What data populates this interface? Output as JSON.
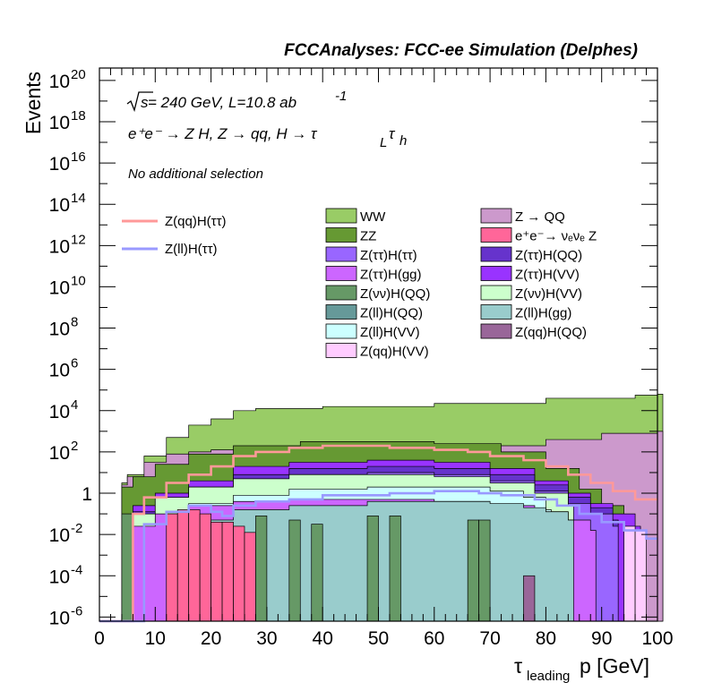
{
  "banner": "FCCAnalyses: FCC-ee Simulation (Delphes)",
  "annotations": {
    "energy_prefix": "s",
    "energy_text": " = 240 GeV, L=10.8 ab",
    "lumi_sup": "-1",
    "process_text": "e⁺e⁻ → Z H, Z → qq, H → τ",
    "tau1_sub": "L",
    "tau2": "τ",
    "tau2_sub": "h",
    "selection": "No additional selection"
  },
  "colors": {
    "WW": "#99cc66",
    "ZZ": "#669933",
    "ZQQ": "#cc99cc",
    "nunuZ": "#ff6699",
    "ZtautauHtautau": "#9966ff",
    "ZtautauHQQ": "#6633cc",
    "ZtautauHgg": "#cc66ff",
    "ZtautauHVV": "#9933ff",
    "ZnunuHQQ": "#669966",
    "ZnunuHVV": "#ccffcc",
    "ZllHQQ": "#669999",
    "ZllHgg": "#99cccc",
    "ZllHVV": "#ccffff",
    "ZqqHQQ": "#996699",
    "ZqqHVV": "#ffccff",
    "sig_qq": "#ff9999",
    "sig_ll": "#9999ff"
  },
  "chart_data": {
    "type": "histogram-stacked-log",
    "title": "FCCAnalyses: FCC-ee Simulation (Delphes)",
    "xlabel": "τ_leading p [GeV]",
    "ylabel": "Events",
    "xlim": [
      0,
      100
    ],
    "ylim_log10": [
      -6.2,
      20.6
    ],
    "y_ticks": [
      {
        "base": "10",
        "exp": "20"
      },
      {
        "base": "10",
        "exp": "18"
      },
      {
        "base": "10",
        "exp": "16"
      },
      {
        "base": "10",
        "exp": "14"
      },
      {
        "base": "10",
        "exp": "12"
      },
      {
        "base": "10",
        "exp": "10"
      },
      {
        "base": "10",
        "exp": "8"
      },
      {
        "base": "10",
        "exp": "6"
      },
      {
        "base": "10",
        "exp": "4"
      },
      {
        "base": "10",
        "exp": "2"
      },
      {
        "base": "1",
        "exp": ""
      },
      {
        "base": "10",
        "exp": "-2"
      },
      {
        "base": "10",
        "exp": "-4"
      },
      {
        "base": "10",
        "exp": "-6"
      }
    ],
    "x_ticks": [
      "0",
      "10",
      "20",
      "30",
      "40",
      "50",
      "60",
      "70",
      "80",
      "90",
      "100"
    ],
    "envelopes_log10": [
      {
        "name": "WW",
        "color_key": "WW",
        "points": [
          [
            4,
            0.5
          ],
          [
            5,
            0.9
          ],
          [
            8,
            1.8
          ],
          [
            12,
            2.7
          ],
          [
            16,
            3.3
          ],
          [
            20,
            3.6
          ],
          [
            24,
            4.0
          ],
          [
            28,
            4.1
          ],
          [
            40,
            4.2
          ],
          [
            60,
            4.35
          ],
          [
            80,
            4.6
          ],
          [
            96,
            4.75
          ],
          [
            100,
            4.8
          ]
        ]
      },
      {
        "name": "Z → QQ",
        "color_key": "ZQQ",
        "points": [
          [
            4,
            0.4
          ],
          [
            5,
            0.8
          ],
          [
            8,
            1.5
          ],
          [
            12,
            1.9
          ],
          [
            16,
            2.0
          ],
          [
            20,
            2.1
          ],
          [
            28,
            2.2
          ],
          [
            40,
            2.2
          ],
          [
            60,
            2.2
          ],
          [
            70,
            2.3
          ],
          [
            80,
            2.6
          ],
          [
            90,
            2.9
          ],
          [
            100,
            3.0
          ]
        ]
      },
      {
        "name": "ZZ",
        "color_key": "ZZ",
        "points": [
          [
            4,
            0.3
          ],
          [
            6,
            0.8
          ],
          [
            10,
            1.4
          ],
          [
            16,
            1.9
          ],
          [
            24,
            2.3
          ],
          [
            36,
            2.5
          ],
          [
            48,
            2.5
          ],
          [
            60,
            2.4
          ],
          [
            72,
            2.0
          ],
          [
            80,
            1.2
          ],
          [
            86,
            0.2
          ],
          [
            90,
            -0.6
          ],
          [
            94,
            -1.6
          ],
          [
            96,
            -2.6
          ]
        ]
      },
      {
        "name": "Z(ττ)H(VV)",
        "color_key": "ZtautauHVV",
        "points": [
          [
            6,
            -0.6
          ],
          [
            10,
            0.0
          ],
          [
            16,
            0.6
          ],
          [
            24,
            1.3
          ],
          [
            34,
            1.5
          ],
          [
            48,
            1.6
          ],
          [
            60,
            1.5
          ],
          [
            70,
            1.2
          ],
          [
            78,
            0.6
          ],
          [
            84,
            0.0
          ],
          [
            88,
            -0.5
          ],
          [
            92,
            -1.0
          ],
          [
            96,
            -1.6
          ]
        ]
      },
      {
        "name": "Z(ττ)H(QQ)",
        "color_key": "ZtautauHQQ",
        "points": [
          [
            6,
            -0.9
          ],
          [
            10,
            -0.3
          ],
          [
            16,
            0.3
          ],
          [
            24,
            0.9
          ],
          [
            34,
            1.2
          ],
          [
            48,
            1.3
          ],
          [
            60,
            1.2
          ],
          [
            70,
            0.9
          ],
          [
            78,
            0.4
          ],
          [
            84,
            -0.2
          ],
          [
            88,
            -0.7
          ],
          [
            92,
            -1.3
          ]
        ]
      },
      {
        "name": "Z(ττ)H(ττ)",
        "color_key": "ZtautauHtautau",
        "points": [
          [
            6,
            -1.2
          ],
          [
            10,
            -0.6
          ],
          [
            16,
            0.0
          ],
          [
            24,
            0.6
          ],
          [
            34,
            0.9
          ],
          [
            48,
            1.0
          ],
          [
            60,
            0.9
          ],
          [
            70,
            0.6
          ],
          [
            78,
            0.1
          ],
          [
            84,
            -0.5
          ],
          [
            88,
            -1.0
          ],
          [
            92,
            -1.6
          ]
        ]
      },
      {
        "name": "Z(νν)H(VV)",
        "color_key": "ZnunuHVV",
        "points": [
          [
            6,
            -1.0
          ],
          [
            10,
            -0.2
          ],
          [
            16,
            0.3
          ],
          [
            24,
            0.7
          ],
          [
            34,
            0.9
          ],
          [
            48,
            0.9
          ],
          [
            60,
            0.8
          ],
          [
            70,
            0.5
          ],
          [
            78,
            0.0
          ],
          [
            84,
            -0.6
          ]
        ]
      },
      {
        "name": "Z(ll)H(VV)",
        "color_key": "ZllHVV",
        "points": [
          [
            10,
            -1.2
          ],
          [
            16,
            -0.5
          ],
          [
            24,
            -0.1
          ],
          [
            34,
            0.2
          ],
          [
            48,
            0.3
          ],
          [
            60,
            0.3
          ],
          [
            70,
            0.1
          ],
          [
            76,
            -0.2
          ],
          [
            80,
            -0.8
          ]
        ]
      },
      {
        "name": "Z(ττ)H(gg)",
        "color_key": "ZtautauHgg",
        "points": [
          [
            6,
            -1.6
          ],
          [
            10,
            -1.0
          ],
          [
            16,
            -0.6
          ],
          [
            24,
            -0.4
          ],
          [
            34,
            -0.3
          ],
          [
            48,
            -0.3
          ],
          [
            60,
            -0.4
          ],
          [
            70,
            -0.6
          ],
          [
            78,
            -0.9
          ],
          [
            84,
            -1.3
          ],
          [
            88,
            -1.8
          ]
        ]
      },
      {
        "name": "Z(ll)H(gg)",
        "color_key": "ZllHgg",
        "points": [
          [
            14,
            -2.0
          ],
          [
            20,
            -1.3
          ],
          [
            24,
            -0.8
          ],
          [
            34,
            -0.6
          ],
          [
            48,
            -0.4
          ],
          [
            60,
            -0.4
          ],
          [
            70,
            -0.5
          ],
          [
            76,
            -0.7
          ],
          [
            80,
            -0.9
          ],
          [
            84,
            -1.3
          ]
        ]
      }
    ],
    "spikes_log10": [
      {
        "name": "e⁺e⁻→ νₑνₑ Z",
        "color_key": "nunuZ",
        "bins": [
          [
            12,
            14,
            -1.0
          ],
          [
            14,
            16,
            -0.8
          ],
          [
            16,
            18,
            -0.8
          ],
          [
            18,
            20,
            -1.0
          ],
          [
            20,
            22,
            -1.4
          ],
          [
            22,
            24,
            -1.4
          ],
          [
            24,
            26,
            -1.6
          ],
          [
            26,
            28,
            -1.9
          ]
        ]
      },
      {
        "name": "Z(νν)H(QQ)",
        "color_key": "ZnunuHQQ",
        "bins": [
          [
            4,
            6,
            -1.0
          ],
          [
            28,
            30,
            -1.1
          ],
          [
            34,
            36,
            -1.3
          ],
          [
            38,
            40,
            -1.5
          ],
          [
            48,
            50,
            -1.1
          ],
          [
            52,
            54,
            -1.1
          ],
          [
            66,
            68,
            -1.3
          ],
          [
            68,
            70,
            -1.3
          ]
        ]
      },
      {
        "name": "Z(qq)H(QQ)",
        "color_key": "ZqqHQQ",
        "bins": [
          [
            76,
            78,
            -4.0
          ]
        ]
      },
      {
        "name": "Z(qq)H(VV)",
        "color_key": "ZqqHVV",
        "bins": [
          [
            94,
            96,
            -1.6
          ],
          [
            96,
            98,
            -1.8
          ]
        ]
      }
    ],
    "signal_lines_log10": [
      {
        "name": "Z(qq)H(ττ)",
        "color_key": "sig_qq",
        "points": [
          [
            0,
            -6.2
          ],
          [
            6,
            -6.2
          ],
          [
            6,
            -1.0
          ],
          [
            8,
            -1.0
          ],
          [
            8,
            -0.2
          ],
          [
            12,
            -0.2
          ],
          [
            12,
            0.5
          ],
          [
            16,
            0.5
          ],
          [
            16,
            0.9
          ],
          [
            20,
            0.9
          ],
          [
            20,
            1.3
          ],
          [
            24,
            1.3
          ],
          [
            24,
            1.8
          ],
          [
            28,
            1.8
          ],
          [
            28,
            2.0
          ],
          [
            34,
            2.0
          ],
          [
            34,
            2.2
          ],
          [
            40,
            2.2
          ],
          [
            40,
            2.3
          ],
          [
            52,
            2.3
          ],
          [
            52,
            2.2
          ],
          [
            60,
            2.2
          ],
          [
            60,
            2.1
          ],
          [
            66,
            2.1
          ],
          [
            66,
            2.0
          ],
          [
            70,
            2.0
          ],
          [
            70,
            1.8
          ],
          [
            76,
            1.8
          ],
          [
            76,
            1.6
          ],
          [
            80,
            1.6
          ],
          [
            80,
            1.3
          ],
          [
            84,
            1.3
          ],
          [
            84,
            0.9
          ],
          [
            88,
            0.9
          ],
          [
            88,
            0.5
          ],
          [
            92,
            0.5
          ],
          [
            92,
            0.1
          ],
          [
            96,
            0.1
          ],
          [
            96,
            -0.3
          ],
          [
            100,
            -0.3
          ]
        ]
      },
      {
        "name": "Z(ll)H(ττ)",
        "color_key": "sig_ll",
        "points": [
          [
            0,
            -6.2
          ],
          [
            8,
            -6.2
          ],
          [
            8,
            -1.5
          ],
          [
            12,
            -1.5
          ],
          [
            12,
            -0.9
          ],
          [
            16,
            -0.9
          ],
          [
            16,
            -0.6
          ],
          [
            20,
            -0.6
          ],
          [
            20,
            -0.9
          ],
          [
            22,
            -0.9
          ],
          [
            22,
            -1.1
          ],
          [
            24,
            -1.1
          ],
          [
            24,
            -0.6
          ],
          [
            28,
            -0.6
          ],
          [
            28,
            -0.4
          ],
          [
            34,
            -0.4
          ],
          [
            34,
            -0.3
          ],
          [
            40,
            -0.3
          ],
          [
            40,
            -0.1
          ],
          [
            52,
            -0.1
          ],
          [
            52,
            0.0
          ],
          [
            60,
            0.0
          ],
          [
            60,
            0.1
          ],
          [
            68,
            0.1
          ],
          [
            68,
            0.0
          ],
          [
            72,
            0.0
          ],
          [
            72,
            -0.1
          ],
          [
            78,
            -0.1
          ],
          [
            78,
            -0.3
          ],
          [
            82,
            -0.3
          ],
          [
            82,
            -0.6
          ],
          [
            86,
            -0.6
          ],
          [
            86,
            -1.0
          ],
          [
            90,
            -1.0
          ],
          [
            90,
            -1.4
          ],
          [
            94,
            -1.4
          ],
          [
            94,
            -1.8
          ],
          [
            98,
            -1.8
          ],
          [
            98,
            -2.2
          ],
          [
            100,
            -2.2
          ]
        ]
      }
    ],
    "legend_left": [
      {
        "label": "Z(qq)H(ττ)",
        "color_key": "sig_qq"
      },
      {
        "label": "Z(ll)H(ττ)",
        "color_key": "sig_ll"
      }
    ],
    "legend_mid": [
      {
        "label": "WW",
        "color_key": "WW"
      },
      {
        "label": "ZZ",
        "color_key": "ZZ"
      },
      {
        "label": "Z(ττ)H(ττ)",
        "color_key": "ZtautauHtautau"
      },
      {
        "label": "Z(ττ)H(gg)",
        "color_key": "ZtautauHgg"
      },
      {
        "label": "Z(νν)H(QQ)",
        "color_key": "ZnunuHQQ"
      },
      {
        "label": "Z(ll)H(QQ)",
        "color_key": "ZllHQQ"
      },
      {
        "label": "Z(ll)H(VV)",
        "color_key": "ZllHVV"
      },
      {
        "label": "Z(qq)H(VV)",
        "color_key": "ZqqHVV"
      }
    ],
    "legend_right": [
      {
        "label": "Z → QQ",
        "color_key": "ZQQ"
      },
      {
        "label": "e⁺e⁻→ νₑνₑ Z",
        "color_key": "nunuZ"
      },
      {
        "label": "Z(ττ)H(QQ)",
        "color_key": "ZtautauHQQ"
      },
      {
        "label": "Z(ττ)H(VV)",
        "color_key": "ZtautauHVV"
      },
      {
        "label": "Z(νν)H(VV)",
        "color_key": "ZnunuHVV"
      },
      {
        "label": "Z(ll)H(gg)",
        "color_key": "ZllHgg"
      },
      {
        "label": "Z(qq)H(QQ)",
        "color_key": "ZqqHQQ"
      }
    ]
  }
}
